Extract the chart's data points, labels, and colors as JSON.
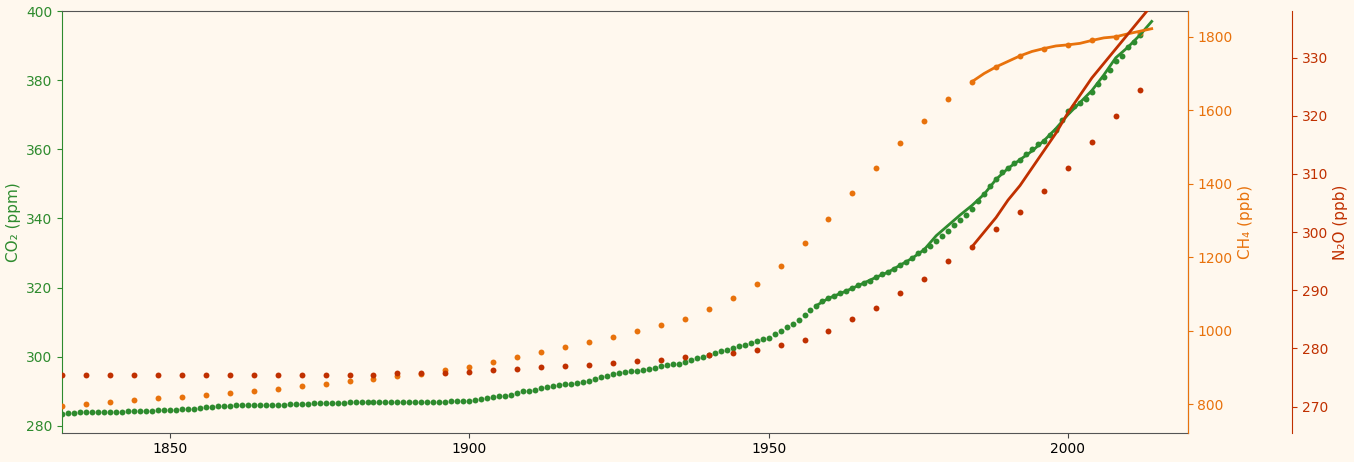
{
  "background_color": "#FFF8EE",
  "co2_color": "#2E8B2E",
  "ch4_color": "#E8720C",
  "n2o_color": "#C03000",
  "xlim": [
    1832,
    2020
  ],
  "co2_ylim": [
    278,
    400
  ],
  "ch4_ylim": [
    722,
    1870
  ],
  "n2o_ylim": [
    265.5,
    338
  ],
  "co2_yticks": [
    280,
    300,
    320,
    340,
    360,
    380,
    400
  ],
  "ch4_yticks": [
    800,
    1000,
    1200,
    1400,
    1600,
    1800
  ],
  "n2o_yticks": [
    270,
    280,
    290,
    300,
    310,
    320,
    330
  ],
  "ylabel_fontsize": 11,
  "tick_fontsize": 10,
  "co2_ylabel": "CO₂ (ppm)",
  "ch4_ylabel": "CH₄ (ppb)",
  "n2o_ylabel": "N₂O (ppb)",
  "xticks": [
    1850,
    1900,
    1950,
    2000
  ],
  "co2_scatter_years": [
    1832,
    1833,
    1834,
    1835,
    1836,
    1837,
    1838,
    1839,
    1840,
    1841,
    1842,
    1843,
    1844,
    1845,
    1846,
    1847,
    1848,
    1849,
    1850,
    1851,
    1852,
    1853,
    1854,
    1855,
    1856,
    1857,
    1858,
    1859,
    1860,
    1861,
    1862,
    1863,
    1864,
    1865,
    1866,
    1867,
    1868,
    1869,
    1870,
    1871,
    1872,
    1873,
    1874,
    1875,
    1876,
    1877,
    1878,
    1879,
    1880,
    1881,
    1882,
    1883,
    1884,
    1885,
    1886,
    1887,
    1888,
    1889,
    1890,
    1891,
    1892,
    1893,
    1894,
    1895,
    1896,
    1897,
    1898,
    1899,
    1900,
    1901,
    1902,
    1903,
    1904,
    1905,
    1906,
    1907,
    1908,
    1909,
    1910,
    1911,
    1912,
    1913,
    1914,
    1915,
    1916,
    1917,
    1918,
    1919,
    1920,
    1921,
    1922,
    1923,
    1924,
    1925,
    1926,
    1927,
    1928,
    1929,
    1930,
    1931,
    1932,
    1933,
    1934,
    1935,
    1936,
    1937,
    1938,
    1939,
    1940,
    1941,
    1942,
    1943,
    1944,
    1945,
    1946,
    1947,
    1948,
    1949,
    1950,
    1951,
    1952,
    1953,
    1954,
    1955,
    1956,
    1957,
    1958,
    1959,
    1960,
    1961,
    1962,
    1963,
    1964,
    1965,
    1966,
    1967,
    1968,
    1969,
    1970,
    1971,
    1972,
    1973,
    1974,
    1975,
    1976,
    1977,
    1978,
    1979,
    1980,
    1981,
    1982,
    1983,
    1984,
    1985,
    1986,
    1987,
    1988,
    1989,
    1990,
    1991,
    1992,
    1993,
    1994,
    1995,
    1996,
    1997,
    1998,
    1999,
    2000,
    2001,
    2002,
    2003,
    2004,
    2005,
    2006,
    2007,
    2008,
    2009,
    2010,
    2011,
    2012
  ],
  "co2_scatter_vals": [
    283.5,
    283.7,
    283.8,
    283.9,
    284.0,
    284.0,
    284.0,
    284.0,
    284.0,
    284.1,
    284.1,
    284.2,
    284.2,
    284.3,
    284.4,
    284.4,
    284.5,
    284.5,
    284.6,
    284.7,
    284.8,
    285.0,
    285.0,
    285.2,
    285.4,
    285.5,
    285.6,
    285.7,
    285.8,
    286.0,
    286.0,
    286.0,
    286.0,
    286.0,
    286.0,
    286.0,
    286.0,
    286.1,
    286.2,
    286.2,
    286.3,
    286.4,
    286.5,
    286.5,
    286.6,
    286.7,
    286.7,
    286.7,
    286.8,
    286.8,
    287.0,
    287.0,
    287.0,
    287.0,
    287.0,
    287.0,
    287.0,
    287.0,
    287.0,
    287.0,
    287.0,
    287.0,
    287.0,
    287.0,
    287.0,
    287.1,
    287.2,
    287.2,
    287.3,
    287.5,
    287.8,
    288.0,
    288.2,
    288.5,
    288.7,
    289.0,
    289.5,
    290.0,
    290.2,
    290.5,
    291.0,
    291.2,
    291.5,
    291.7,
    292.0,
    292.2,
    292.5,
    292.7,
    293.0,
    293.5,
    294.0,
    294.5,
    295.0,
    295.2,
    295.5,
    295.8,
    296.0,
    296.2,
    296.5,
    296.8,
    297.2,
    297.5,
    297.8,
    298.0,
    298.5,
    299.0,
    299.5,
    300.0,
    300.5,
    301.0,
    301.5,
    302.0,
    302.5,
    303.0,
    303.5,
    304.0,
    304.5,
    305.0,
    305.5,
    306.5,
    307.5,
    308.5,
    309.5,
    310.5,
    312.0,
    313.5,
    314.8,
    316.0,
    316.9,
    317.6,
    318.3,
    319.0,
    319.8,
    320.7,
    321.4,
    322.0,
    323.0,
    323.8,
    324.5,
    325.5,
    326.5,
    327.5,
    328.5,
    330.0,
    331.0,
    332.0,
    333.5,
    335.0,
    336.5,
    338.0,
    339.5,
    341.0,
    342.8,
    345.0,
    347.0,
    349.5,
    351.3,
    353.5,
    354.5,
    356.0,
    357.0,
    358.5,
    360.0,
    361.5,
    362.5,
    364.0,
    365.5,
    368.5,
    371.0,
    372.5,
    373.5,
    374.5,
    376.5,
    379.0,
    381.0,
    383.0,
    385.5,
    387.0,
    389.5,
    391.0,
    393.0
  ],
  "ch4_scatter_years": [
    1832,
    1836,
    1840,
    1844,
    1848,
    1852,
    1856,
    1860,
    1864,
    1868,
    1872,
    1876,
    1880,
    1884,
    1888,
    1892,
    1896,
    1900,
    1904,
    1908,
    1912,
    1916,
    1920,
    1924,
    1928,
    1932,
    1936,
    1940,
    1944,
    1948,
    1952,
    1956,
    1960,
    1964,
    1968,
    1972,
    1976,
    1980,
    1984,
    1988,
    1992,
    1996,
    2000,
    2004,
    2008,
    2012
  ],
  "ch4_scatter_vals": [
    795,
    800,
    805,
    810,
    816,
    820,
    825,
    830,
    836,
    842,
    848,
    855,
    862,
    869,
    876,
    883,
    892,
    902,
    914,
    928,
    942,
    955,
    968,
    982,
    998,
    1015,
    1032,
    1058,
    1090,
    1128,
    1175,
    1238,
    1305,
    1374,
    1443,
    1512,
    1572,
    1630,
    1678,
    1718,
    1748,
    1768,
    1778,
    1790,
    1800,
    1810
  ],
  "n2o_scatter_years": [
    1832,
    1836,
    1840,
    1844,
    1848,
    1852,
    1856,
    1860,
    1864,
    1868,
    1872,
    1876,
    1880,
    1884,
    1888,
    1892,
    1896,
    1900,
    1904,
    1908,
    1912,
    1916,
    1920,
    1924,
    1928,
    1932,
    1936,
    1940,
    1944,
    1948,
    1952,
    1956,
    1960,
    1964,
    1968,
    1972,
    1976,
    1980,
    1984,
    1988,
    1992,
    1996,
    2000,
    2004,
    2008,
    2012
  ],
  "n2o_scatter_vals": [
    275.5,
    275.5,
    275.5,
    275.5,
    275.5,
    275.5,
    275.5,
    275.5,
    275.5,
    275.5,
    275.5,
    275.5,
    275.5,
    275.5,
    275.8,
    275.8,
    275.8,
    276.0,
    276.2,
    276.5,
    276.8,
    277.0,
    277.2,
    277.5,
    277.8,
    278.0,
    278.5,
    278.8,
    279.2,
    279.8,
    280.5,
    281.5,
    283.0,
    285.0,
    287.0,
    289.5,
    292.0,
    295.0,
    297.5,
    300.5,
    303.5,
    307.0,
    311.0,
    315.5,
    320.0,
    324.5
  ],
  "co2_line_years": [
    1958,
    1960,
    1962,
    1964,
    1966,
    1968,
    1970,
    1972,
    1974,
    1976,
    1978,
    1980,
    1982,
    1984,
    1986,
    1988,
    1990,
    1992,
    1994,
    1996,
    1998,
    2000,
    2002,
    2004,
    2006,
    2008,
    2010,
    2012,
    2014
  ],
  "co2_line_vals": [
    314.8,
    316.9,
    318.3,
    319.8,
    321.4,
    323.0,
    324.5,
    326.5,
    328.5,
    331.0,
    335.0,
    338.0,
    341.0,
    343.8,
    347.0,
    351.3,
    354.5,
    357.0,
    359.5,
    362.5,
    366.0,
    370.0,
    373.5,
    377.0,
    381.5,
    386.5,
    389.5,
    393.0,
    397.0
  ],
  "ch4_line_years": [
    1984,
    1986,
    1988,
    1990,
    1992,
    1994,
    1996,
    1998,
    2000,
    2002,
    2004,
    2006,
    2008,
    2010,
    2012,
    2014
  ],
  "ch4_line_vals": [
    1678,
    1700,
    1718,
    1733,
    1748,
    1760,
    1768,
    1775,
    1778,
    1782,
    1790,
    1797,
    1800,
    1808,
    1815,
    1822
  ],
  "n2o_line_years": [
    1984,
    1986,
    1988,
    1990,
    1992,
    1994,
    1996,
    1998,
    2000,
    2002,
    2004,
    2006,
    2008,
    2010,
    2012,
    2014
  ],
  "n2o_line_vals": [
    297.5,
    300.0,
    302.5,
    305.5,
    308.0,
    311.0,
    314.0,
    317.0,
    320.5,
    323.5,
    326.5,
    329.0,
    331.5,
    334.0,
    336.5,
    339.0
  ]
}
